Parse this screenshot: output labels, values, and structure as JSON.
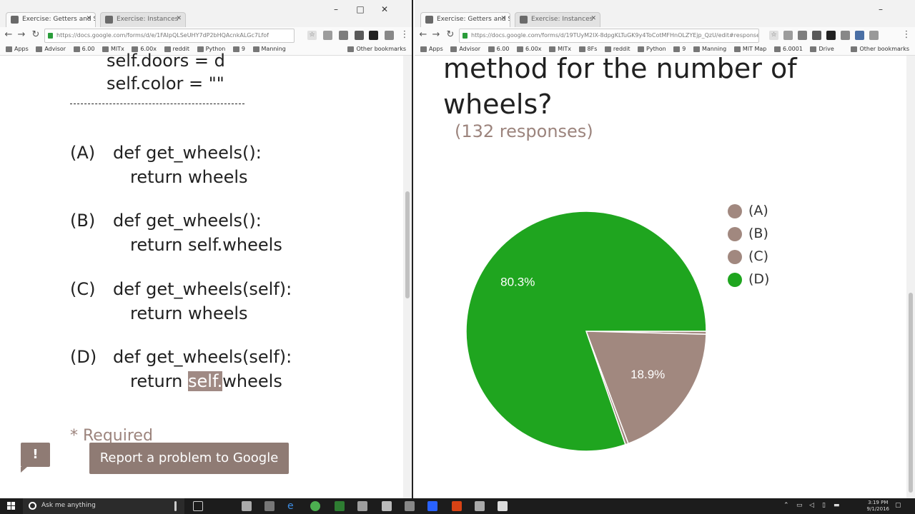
{
  "left_browser": {
    "tabs": [
      {
        "title": "Exercise: Getters and Se",
        "active": true
      },
      {
        "title": "Exercise: Instances",
        "active": false
      }
    ],
    "url": "https://docs.google.com/forms/d/e/1FAIpQLSeUHY7dP2bHQAcnkALGc7Lfof",
    "bookmarks": [
      "Apps",
      "Advisor",
      "6.00",
      "MITx",
      "6.00x",
      "reddit",
      "Python",
      "9",
      "Manning"
    ],
    "other_bookmarks": "Other bookmarks",
    "code_lines": {
      "doors": "self.doors = d",
      "color": "self.color = \"\""
    },
    "options": [
      {
        "letter": "(A)",
        "def": "def get_wheels():",
        "ret": "return wheels"
      },
      {
        "letter": "(B)",
        "def": "def get_wheels():",
        "ret": "return self.wheels"
      },
      {
        "letter": "(C)",
        "def": "def get_wheels(self):",
        "ret": "return wheels"
      },
      {
        "letter": "(D)",
        "def": "def get_wheels(self):",
        "ret_prefix": "return ",
        "ret_highlight": "self.",
        "ret_suffix": "wheels"
      }
    ],
    "required": "* Required",
    "feedback_icon": "!",
    "report_button": "Report a problem to Google"
  },
  "right_browser": {
    "tabs": [
      {
        "title": "Exercise: Getters and Se",
        "active": true
      },
      {
        "title": "Exercise: Instances",
        "active": false
      }
    ],
    "url": "https://docs.google.com/forms/d/19TUyM2IX-8dpgKLTuGK9y4ToCotMFHnOLZYEjp_QzU/edit#responses",
    "bookmarks": [
      "Apps",
      "Advisor",
      "6.00",
      "6.00x",
      "MITx",
      "8Fs",
      "reddit",
      "Python",
      "9",
      "Manning",
      "MIT Map",
      "6.0001",
      "Drive"
    ],
    "other_bookmarks": "Other bookmarks",
    "question_line1": "method for the number of",
    "question_line2": "wheels?",
    "responses": "(132 responses)"
  },
  "chart_data": {
    "type": "pie",
    "title": "",
    "categories": [
      "(A)",
      "(B)",
      "(C)",
      "(D)"
    ],
    "values": [
      0.4,
      18.9,
      0.4,
      80.3
    ],
    "labels_shown": [
      "",
      "18.9%",
      "",
      "80.3%"
    ],
    "colors": [
      "#a1887f",
      "#a1887f",
      "#a1887f",
      "#1fa51f"
    ],
    "legend_position": "right"
  },
  "taskbar": {
    "search_placeholder": "Ask me anything",
    "time": "3:19 PM",
    "date": "9/1/2016"
  },
  "colors": {
    "pie_green": "#1fa51f",
    "pie_brown": "#a1887f",
    "accent_brown": "#8f7b74"
  }
}
